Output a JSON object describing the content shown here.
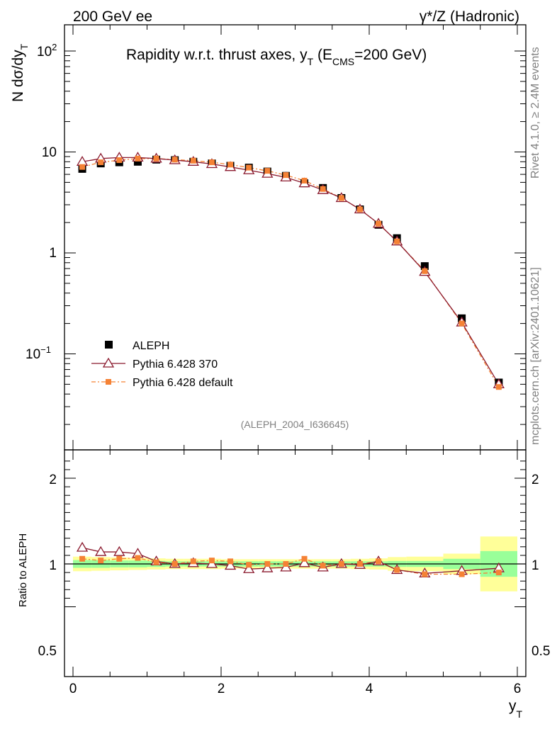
{
  "header": {
    "left": "200 GeV ee",
    "right": "γ*/Z (Hadronic)"
  },
  "side_labels": {
    "rivet": "Rivet 4.1.0, ≥ 2.4M events",
    "mcplots": "mcplots.cern.ch [arXiv:2401.10621]"
  },
  "colors": {
    "data": "#000000",
    "pythia370": "#8b1a2e",
    "pythia_default": "#f58235",
    "band_inner": "#99ff99",
    "band_outer": "#ffff99"
  },
  "chart_data": [
    {
      "type": "scatter",
      "title": "Rapidity w.r.t. thrust axes, y_T (E_CMS=200 GeV)",
      "title_parts": {
        "main": "Rapidity w.r.t. thrust axes, y",
        "sub": "T",
        "open": " (E",
        "sub2": "CMS",
        "close": "=200 GeV)"
      },
      "ylabel": "N  dσ/dy",
      "ylabel_sub": "T",
      "yscale": "log",
      "ylim": [
        0.018,
        180
      ],
      "xlim": [
        -0.2,
        6.05
      ],
      "ytick_labels": [
        "10^-1",
        "1",
        "10",
        "10^2"
      ],
      "yticks_text": {
        "tm1_base": "10",
        "tm1_exp": "−1",
        "t0": "1",
        "t1": "10",
        "t2_base": "10",
        "t2_exp": "2"
      },
      "watermark": "(ALEPH_2004_I636645)",
      "legend_position": "bottom-left",
      "legend": [
        "ALEPH",
        "Pythia 6.428 370",
        "Pythia 6.428 default"
      ],
      "x": [
        0.125,
        0.375,
        0.625,
        0.875,
        1.125,
        1.375,
        1.625,
        1.875,
        2.125,
        2.375,
        2.625,
        2.875,
        3.125,
        3.375,
        3.625,
        3.875,
        4.125,
        4.375,
        4.75,
        5.25,
        5.75
      ],
      "series": [
        {
          "name": "ALEPH",
          "values": [
            6.8,
            7.7,
            7.9,
            8.0,
            8.4,
            8.3,
            8.0,
            7.7,
            7.3,
            7.0,
            6.4,
            5.8,
            4.9,
            4.4,
            3.5,
            2.7,
            1.9,
            1.4,
            0.74,
            0.225,
            0.052
          ]
        },
        {
          "name": "Pythia 6.428 370",
          "values": [
            8.0,
            8.6,
            8.8,
            8.8,
            8.6,
            8.3,
            8.0,
            7.6,
            7.1,
            6.6,
            6.1,
            5.6,
            4.9,
            4.2,
            3.5,
            2.7,
            1.95,
            1.3,
            0.65,
            0.205,
            0.05
          ]
        },
        {
          "name": "Pythia 6.428 default",
          "values": [
            7.1,
            7.9,
            8.3,
            8.6,
            8.6,
            8.4,
            8.2,
            7.9,
            7.5,
            7.0,
            6.5,
            5.9,
            5.2,
            4.3,
            3.5,
            2.7,
            1.95,
            1.3,
            0.66,
            0.2,
            0.047
          ]
        }
      ]
    },
    {
      "type": "line",
      "ylabel": "Ratio to ALEPH",
      "xlabel": "y",
      "xlabel_sub": "T",
      "ylim": [
        0.4,
        2.3
      ],
      "xlim": [
        -0.2,
        6.05
      ],
      "xticks": [
        "0",
        "2",
        "4",
        "6"
      ],
      "yticks": [
        "0.5",
        "1",
        "2"
      ],
      "band_edges": [
        0.0,
        0.25,
        0.5,
        0.75,
        1.0,
        1.25,
        1.5,
        1.75,
        2.0,
        2.25,
        2.5,
        2.75,
        3.0,
        3.25,
        3.5,
        3.75,
        4.0,
        4.25,
        4.5,
        5.0,
        5.5,
        6.0
      ],
      "band_inner": [
        0.045,
        0.045,
        0.04,
        0.04,
        0.035,
        0.03,
        0.03,
        0.03,
        0.03,
        0.03,
        0.03,
        0.03,
        0.03,
        0.03,
        0.03,
        0.03,
        0.03,
        0.035,
        0.035,
        0.06,
        0.15
      ],
      "band_outer": [
        0.085,
        0.08,
        0.075,
        0.07,
        0.065,
        0.06,
        0.06,
        0.06,
        0.055,
        0.055,
        0.055,
        0.055,
        0.055,
        0.055,
        0.055,
        0.06,
        0.065,
        0.08,
        0.085,
        0.12,
        0.32
      ],
      "x": [
        0.125,
        0.375,
        0.625,
        0.875,
        1.125,
        1.375,
        1.625,
        1.875,
        2.125,
        2.375,
        2.625,
        2.875,
        3.125,
        3.375,
        3.625,
        3.875,
        4.125,
        4.375,
        4.75,
        5.25,
        5.75
      ],
      "series": [
        {
          "name": "Pythia 6.428 370",
          "values": [
            1.19,
            1.14,
            1.14,
            1.12,
            1.03,
            1.0,
            1.01,
            1.0,
            0.98,
            0.94,
            0.95,
            0.96,
            1.01,
            0.96,
            1.0,
            0.99,
            1.03,
            0.93,
            0.89,
            0.92,
            0.95
          ]
        },
        {
          "name": "Pythia 6.428 default",
          "values": [
            1.06,
            1.04,
            1.06,
            1.07,
            1.02,
            1.0,
            1.03,
            1.04,
            1.03,
            0.99,
            1.0,
            1.0,
            1.06,
            0.98,
            1.0,
            1.0,
            1.03,
            0.93,
            0.88,
            0.88,
            0.9
          ]
        }
      ]
    }
  ]
}
